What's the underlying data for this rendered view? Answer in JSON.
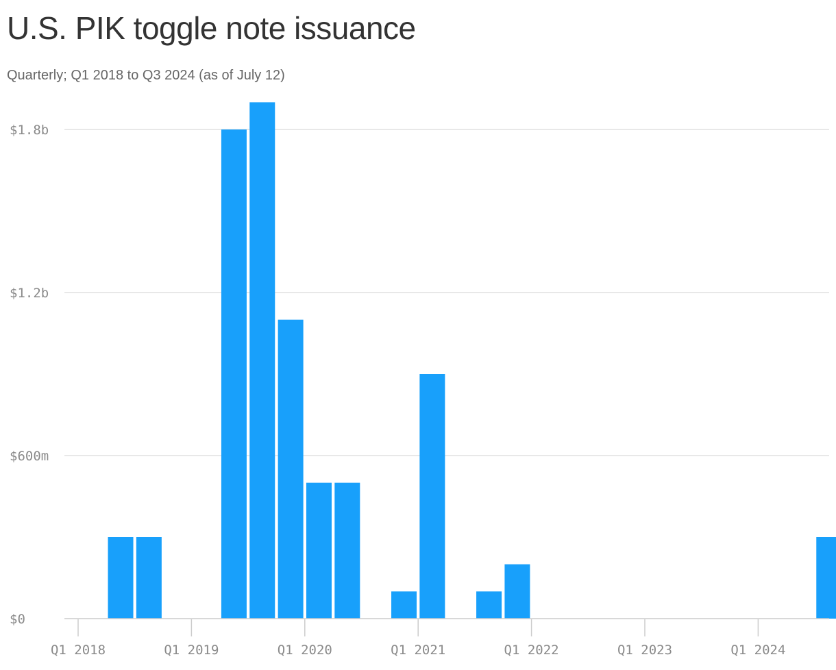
{
  "chart_data": {
    "type": "bar",
    "title": "U.S. PIK toggle note issuance",
    "subtitle": "Quarterly; Q1 2018 to Q3 2024 (as of July 12)",
    "xlabel": "",
    "ylabel": "",
    "bar_color": "#18a0fb",
    "grid": true,
    "ylim": [
      0,
      2000
    ],
    "yticks": [
      {
        "value": 0,
        "label": "$0"
      },
      {
        "value": 600,
        "label": "$600m"
      },
      {
        "value": 1200,
        "label": "$1.2b"
      },
      {
        "value": 1800,
        "label": "$1.8b"
      }
    ],
    "xticks": [
      "Q1 2018",
      "Q1 2019",
      "Q1 2020",
      "Q1 2021",
      "Q1 2022",
      "Q1 2023",
      "Q1 2024"
    ],
    "categories": [
      "Q1 2018",
      "Q2 2018",
      "Q3 2018",
      "Q4 2018",
      "Q1 2019",
      "Q2 2019",
      "Q3 2019",
      "Q4 2019",
      "Q1 2020",
      "Q2 2020",
      "Q3 2020",
      "Q4 2020",
      "Q1 2021",
      "Q2 2021",
      "Q3 2021",
      "Q4 2021",
      "Q1 2022",
      "Q2 2022",
      "Q3 2022",
      "Q4 2022",
      "Q1 2023",
      "Q2 2023",
      "Q3 2023",
      "Q4 2023",
      "Q1 2024",
      "Q2 2024",
      "Q3 2024"
    ],
    "values": [
      0,
      300,
      300,
      0,
      0,
      1800,
      1900,
      1100,
      500,
      500,
      0,
      100,
      900,
      0,
      100,
      200,
      0,
      0,
      0,
      0,
      0,
      0,
      0,
      0,
      0,
      0,
      300
    ]
  }
}
